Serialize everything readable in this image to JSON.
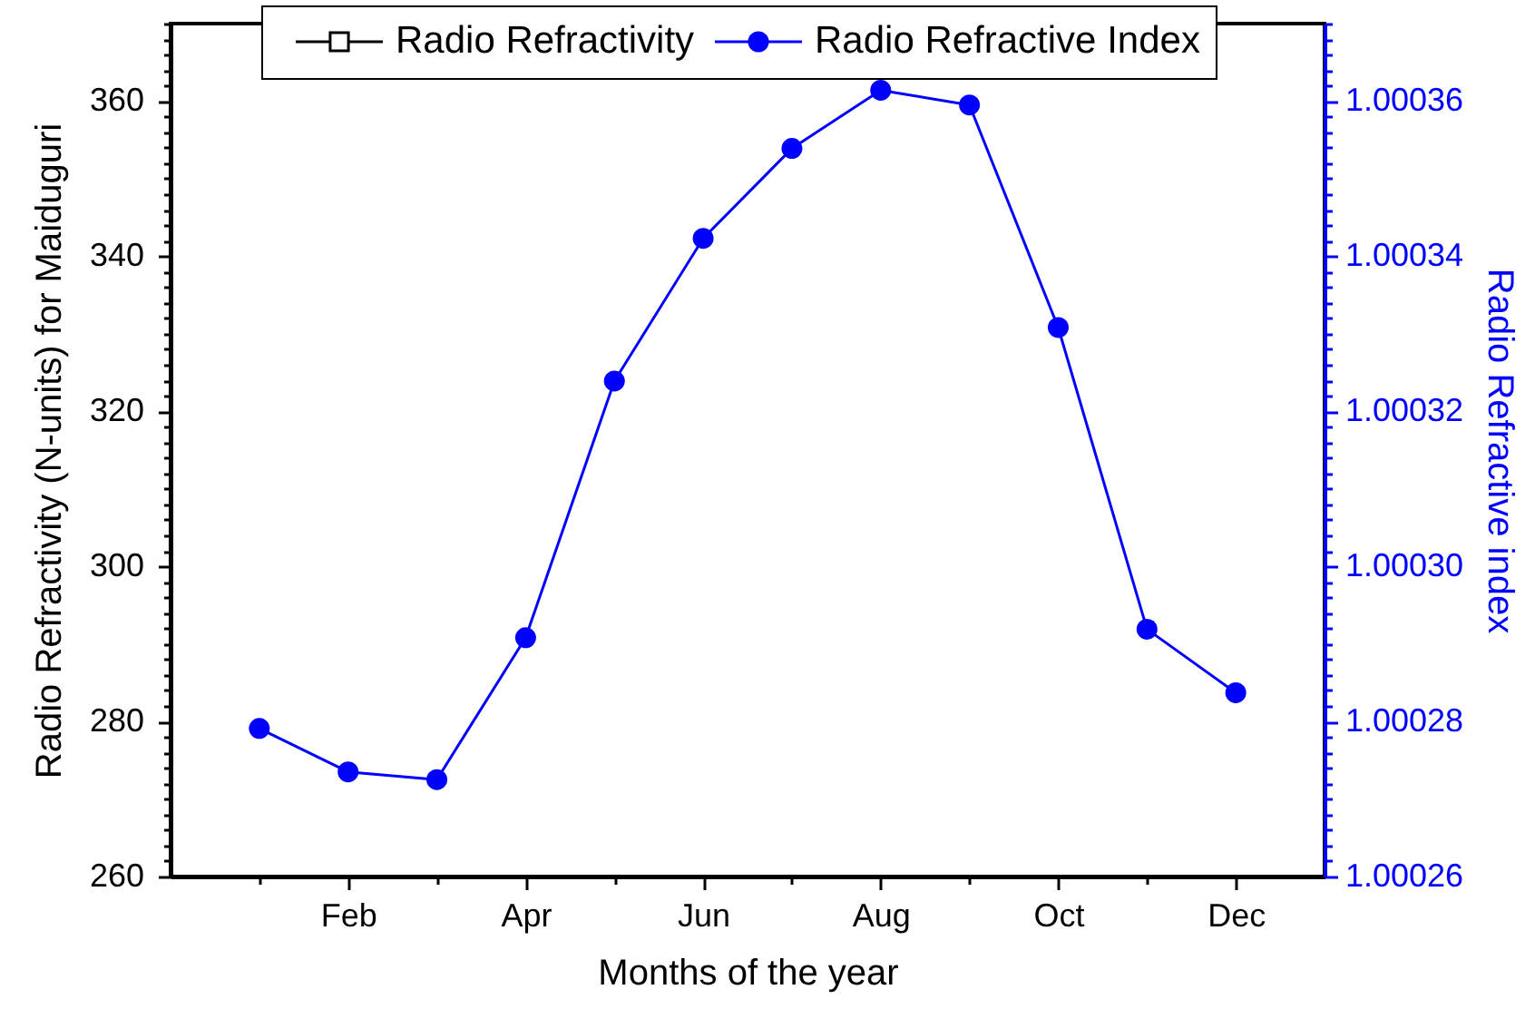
{
  "chart_data": {
    "type": "line",
    "xlabel": "Months of the year",
    "ylabel": "Radio Refractivity (N-units) for Maiduguri",
    "y2label": "Radio Refractive index",
    "categories": [
      null,
      "Feb",
      null,
      "Apr",
      null,
      "Jun",
      null,
      "Aug",
      null,
      "Oct",
      null,
      "Dec"
    ],
    "series": [
      {
        "name": "Radio Refractivity",
        "color": "#000000",
        "marker": "square",
        "values": [
          null,
          null,
          null,
          null,
          null,
          null,
          null,
          null,
          null,
          null,
          null,
          null
        ]
      },
      {
        "name": "Radio Refractive Index",
        "color": "#0000ff",
        "marker": "circle",
        "axis": "y2",
        "values": [
          1.0002791,
          1.0002735,
          1.0002725,
          1.0002908,
          1.0003239,
          1.0003423,
          1.0003539,
          1.0003614,
          1.0003595,
          1.0003308,
          1.0002919,
          1.0002837
        ]
      }
    ],
    "ylim": [
      260,
      370
    ],
    "yticks": [
      260,
      {
        "value": 262,
        "label": null
      },
      {
        "value": 264,
        "label": null
      },
      {
        "value": 266,
        "label": null
      },
      {
        "value": 268,
        "label": null
      },
      {
        "value": 270,
        "label": null
      },
      {
        "value": 272,
        "label": null
      },
      {
        "value": 274,
        "label": null
      },
      {
        "value": 276,
        "label": null
      },
      {
        "value": 278,
        "label": null
      },
      280,
      {
        "value": 282,
        "label": null
      },
      {
        "value": 284,
        "label": null
      },
      {
        "value": 286,
        "label": null
      },
      {
        "value": 288,
        "label": null
      },
      {
        "value": 290,
        "label": null
      },
      {
        "value": 292,
        "label": null
      },
      {
        "value": 294,
        "label": null
      },
      {
        "value": 296,
        "label": null
      },
      {
        "value": 298,
        "label": null
      },
      300,
      {
        "value": 302,
        "label": null
      },
      {
        "value": 304,
        "label": null
      },
      {
        "value": 306,
        "label": null
      },
      {
        "value": 308,
        "label": null
      },
      {
        "value": 310,
        "label": null
      },
      {
        "value": 312,
        "label": null
      },
      {
        "value": 314,
        "label": null
      },
      {
        "value": 316,
        "label": null
      },
      {
        "value": 318,
        "label": null
      },
      320,
      {
        "value": 322,
        "label": null
      },
      {
        "value": 324,
        "label": null
      },
      {
        "value": 326,
        "label": null
      },
      {
        "value": 328,
        "label": null
      },
      {
        "value": 330,
        "label": null
      },
      {
        "value": 332,
        "label": null
      },
      {
        "value": 334,
        "label": null
      },
      {
        "value": 336,
        "label": null
      },
      {
        "value": 338,
        "label": null
      },
      340,
      {
        "value": 342,
        "label": null
      },
      {
        "value": 344,
        "label": null
      },
      {
        "value": 346,
        "label": null
      },
      {
        "value": 348,
        "label": null
      },
      {
        "value": 350,
        "label": null
      },
      {
        "value": 352,
        "label": null
      },
      {
        "value": 354,
        "label": null
      },
      {
        "value": 356,
        "label": null
      },
      {
        "value": 358,
        "label": null
      },
      360,
      {
        "value": 362,
        "label": null
      },
      {
        "value": 364,
        "label": null
      },
      {
        "value": 366,
        "label": null
      },
      {
        "value": 368,
        "label": null
      },
      {
        "value": 370,
        "label": null
      }
    ],
    "y2lim": [
      1.00026,
      1.00037
    ],
    "y2ticks": [
      1.00026,
      {
        "value": 1.000262,
        "label": null
      },
      {
        "value": 1.000264,
        "label": null
      },
      {
        "value": 1.000266,
        "label": null
      },
      {
        "value": 1.000268,
        "label": null
      },
      {
        "value": 1.00027,
        "label": null
      },
      {
        "value": 1.000272,
        "label": null
      },
      {
        "value": 1.000274,
        "label": null
      },
      {
        "value": 1.000276,
        "label": null
      },
      {
        "value": 1.000278,
        "label": null
      },
      1.00028,
      {
        "value": 1.000282,
        "label": null
      },
      {
        "value": 1.000284,
        "label": null
      },
      {
        "value": 1.000286,
        "label": null
      },
      {
        "value": 1.000288,
        "label": null
      },
      {
        "value": 1.00029,
        "label": null
      },
      {
        "value": 1.000292,
        "label": null
      },
      {
        "value": 1.000294,
        "label": null
      },
      {
        "value": 1.000296,
        "label": null
      },
      {
        "value": 1.000298,
        "label": null
      },
      {
        "value": 1.0003,
        "label": "1.00030"
      },
      {
        "value": 1.000302,
        "label": null
      },
      {
        "value": 1.000304,
        "label": null
      },
      {
        "value": 1.000306,
        "label": null
      },
      {
        "value": 1.000308,
        "label": null
      },
      {
        "value": 1.00031,
        "label": null
      },
      {
        "value": 1.000312,
        "label": null
      },
      {
        "value": 1.000314,
        "label": null
      },
      {
        "value": 1.000316,
        "label": null
      },
      {
        "value": 1.000318,
        "label": null
      },
      1.00032,
      {
        "value": 1.000322,
        "label": null
      },
      {
        "value": 1.000324,
        "label": null
      },
      {
        "value": 1.000326,
        "label": null
      },
      {
        "value": 1.000328,
        "label": null
      },
      {
        "value": 1.00033,
        "label": null
      },
      {
        "value": 1.000332,
        "label": null
      },
      {
        "value": 1.000334,
        "label": null
      },
      {
        "value": 1.000336,
        "label": null
      },
      {
        "value": 1.000338,
        "label": null
      },
      1.00034,
      {
        "value": 1.000342,
        "label": null
      },
      {
        "value": 1.000344,
        "label": null
      },
      {
        "value": 1.000346,
        "label": null
      },
      {
        "value": 1.000348,
        "label": null
      },
      {
        "value": 1.00035,
        "label": null
      },
      {
        "value": 1.000352,
        "label": null
      },
      {
        "value": 1.000354,
        "label": null
      },
      {
        "value": 1.000356,
        "label": null
      },
      {
        "value": 1.000358,
        "label": null
      },
      1.00036,
      {
        "value": 1.000362,
        "label": null
      },
      {
        "value": 1.000364,
        "label": null
      },
      {
        "value": 1.000366,
        "label": null
      },
      {
        "value": 1.000368,
        "label": null
      },
      {
        "value": 1.00037,
        "label": null
      }
    ],
    "legend": "top",
    "grid": false,
    "line_style": "solid"
  }
}
